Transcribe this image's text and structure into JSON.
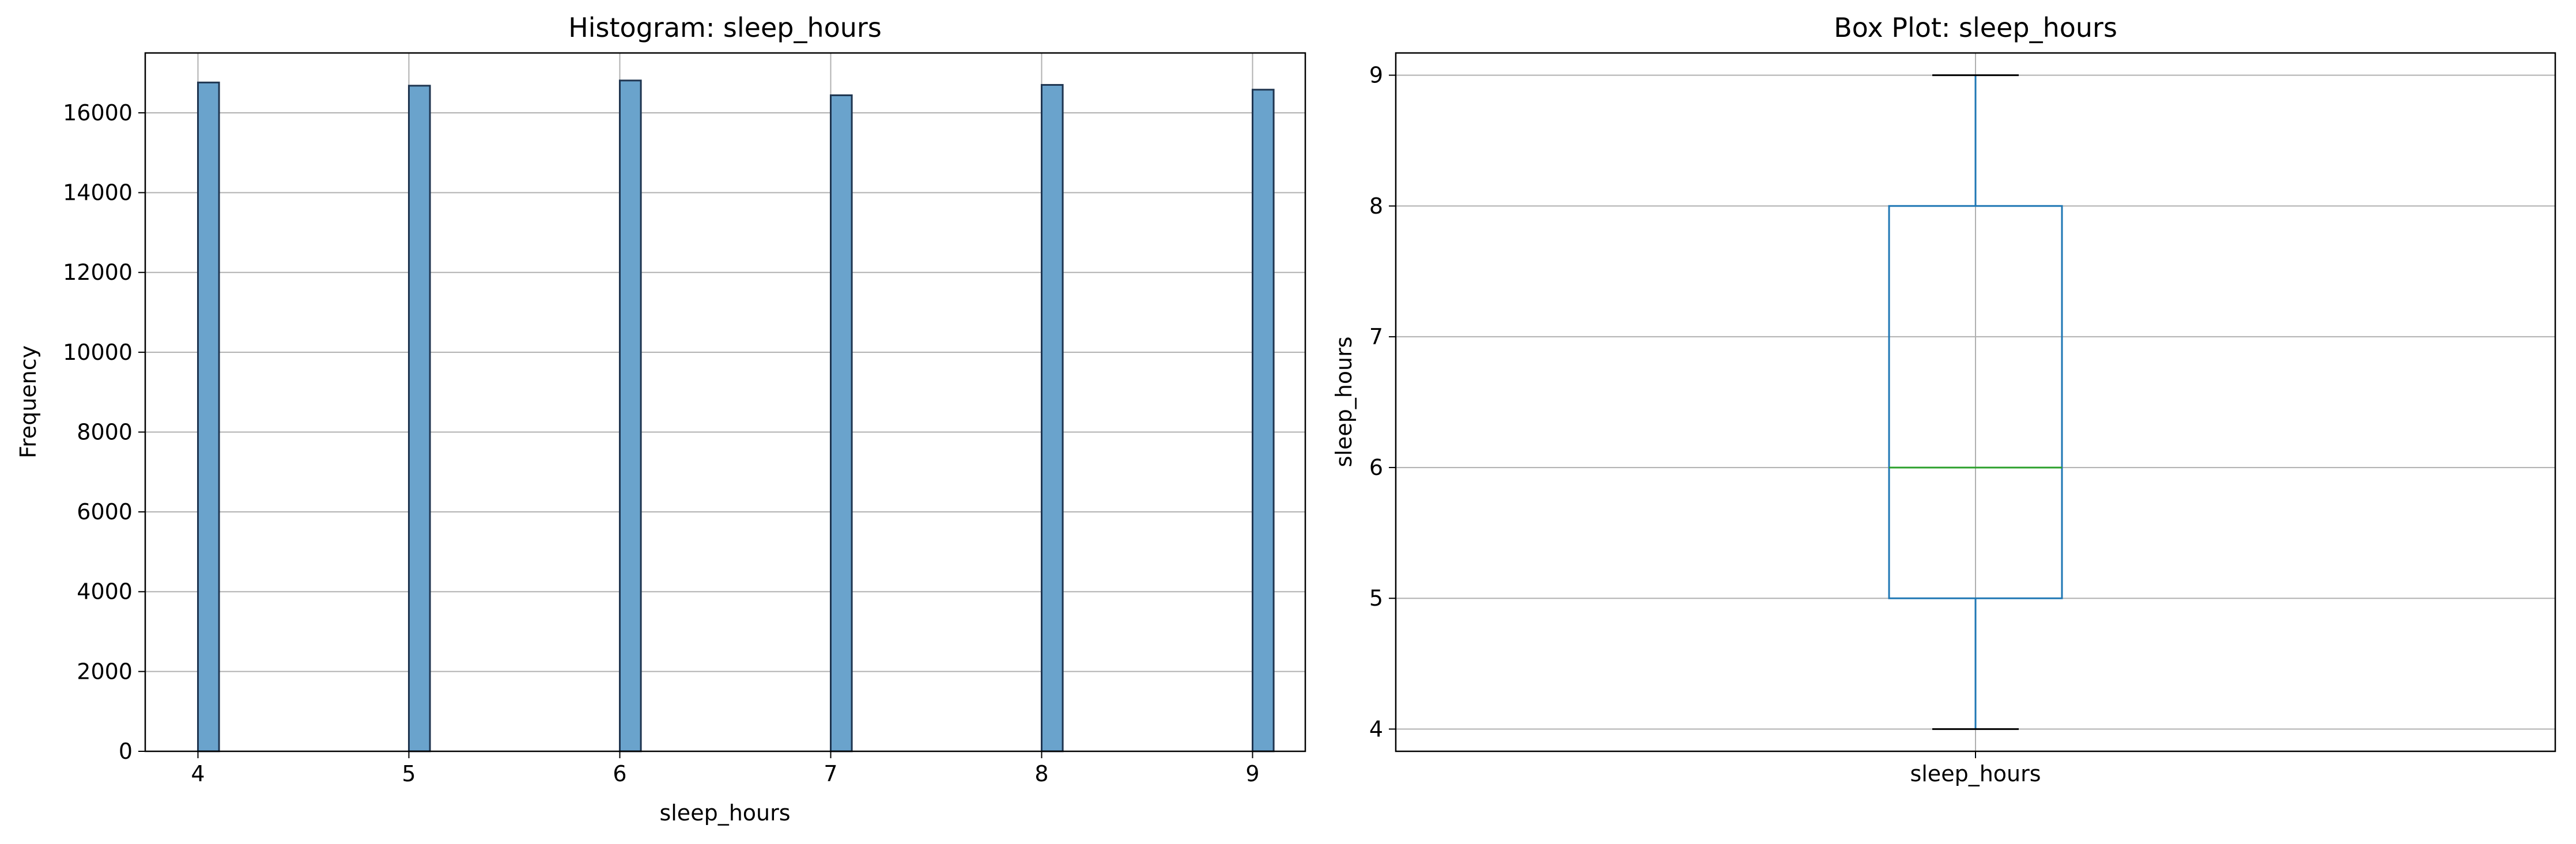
{
  "chart_data": [
    {
      "type": "bar",
      "title": "Histogram: sleep_hours",
      "xlabel": "sleep_hours",
      "ylabel": "Frequency",
      "xlim": [
        3.75,
        9.25
      ],
      "ylim": [
        0,
        17500
      ],
      "xticks": [
        4,
        5,
        6,
        7,
        8,
        9
      ],
      "xtick_labels": [
        "4",
        "5",
        "6",
        "7",
        "8",
        "9"
      ],
      "yticks": [
        0,
        2000,
        4000,
        6000,
        8000,
        10000,
        12000,
        14000,
        16000
      ],
      "ytick_labels": [
        "0",
        "2000",
        "4000",
        "6000",
        "8000",
        "10000",
        "12000",
        "14000",
        "16000"
      ],
      "bin_width": 0.1,
      "bins": [
        {
          "start": 4.0,
          "end": 4.1,
          "count": 16760
        },
        {
          "start": 5.0,
          "end": 5.1,
          "count": 16680
        },
        {
          "start": 6.0,
          "end": 6.1,
          "count": 16810
        },
        {
          "start": 7.0,
          "end": 7.1,
          "count": 16440
        },
        {
          "start": 8.0,
          "end": 8.1,
          "count": 16700
        },
        {
          "start": 9.0,
          "end": 9.1,
          "count": 16580
        }
      ],
      "grid": true,
      "bar_color": "#6aa3cc",
      "edge_color": "#1f3550"
    },
    {
      "type": "box",
      "title": "Box Plot: sleep_hours",
      "ylabel": "sleep_hours",
      "category": "sleep_hours",
      "ylim": [
        3.83,
        9.17
      ],
      "yticks": [
        4,
        5,
        6,
        7,
        8,
        9
      ],
      "ytick_labels": [
        "4",
        "5",
        "6",
        "7",
        "8",
        "9"
      ],
      "stats": {
        "whisker_low": 4,
        "q1": 5,
        "median": 6,
        "q3": 8,
        "whisker_high": 9
      },
      "grid": true,
      "box_color": "#1f77b4",
      "median_color": "#2ca02c",
      "cap_color": "#000000"
    }
  ]
}
